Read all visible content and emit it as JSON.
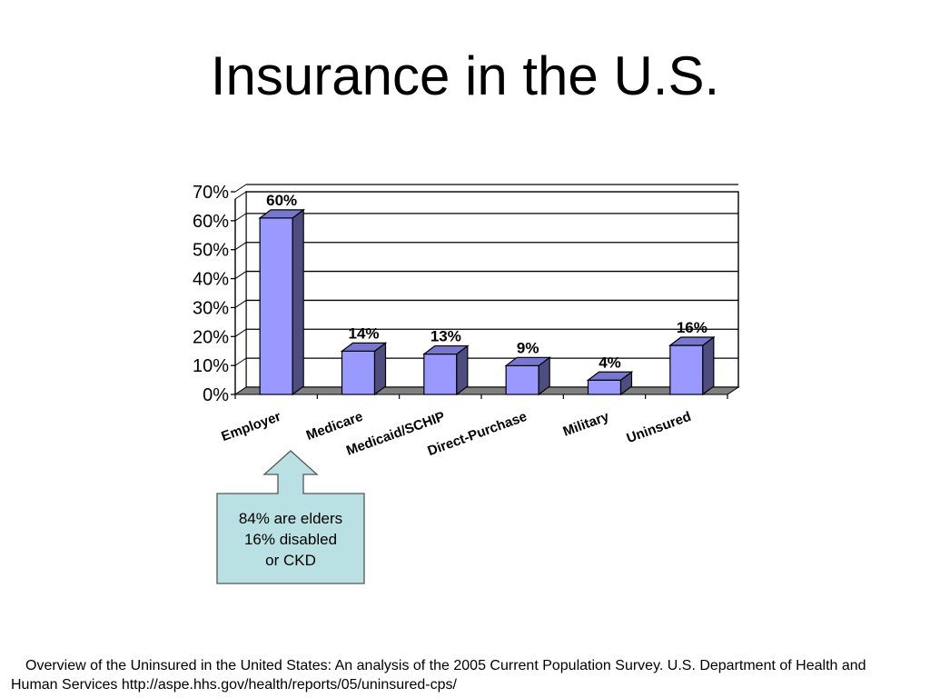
{
  "slide": {
    "title": "Insurance in the U.S."
  },
  "chart_data": {
    "type": "bar",
    "categories": [
      "Employer",
      "Medicare",
      "Medicaid/SCHIP",
      "Direct-Purchase",
      "Military",
      "Uninsured"
    ],
    "values": [
      60,
      14,
      13,
      9,
      4,
      16
    ],
    "data_labels": [
      "60%",
      "14%",
      "13%",
      "9%",
      "4%",
      "16%"
    ],
    "yticks": [
      "0%",
      "10%",
      "20%",
      "30%",
      "40%",
      "50%",
      "60%",
      "70%"
    ],
    "ylim": [
      0,
      70
    ],
    "grid": true,
    "bar_style": "3d",
    "colors": {
      "bar_front": "#9999ff",
      "bar_side": "#4d4d80",
      "bar_top": "#7777d0",
      "floor": "#808080",
      "grid": "#000000"
    }
  },
  "callout": {
    "lines": [
      "84% are elders",
      "16% disabled",
      "or CKD"
    ],
    "fill": "#b9e1e3",
    "stroke": "#555555"
  },
  "footnote": {
    "line1": "Overview of the Uninsured in the United States: An analysis of the 2005 Current Population Survey. U.S. Department of Health and",
    "line2": "Human Services http://aspe.hhs.gov/health/reports/05/uninsured-cps/"
  }
}
